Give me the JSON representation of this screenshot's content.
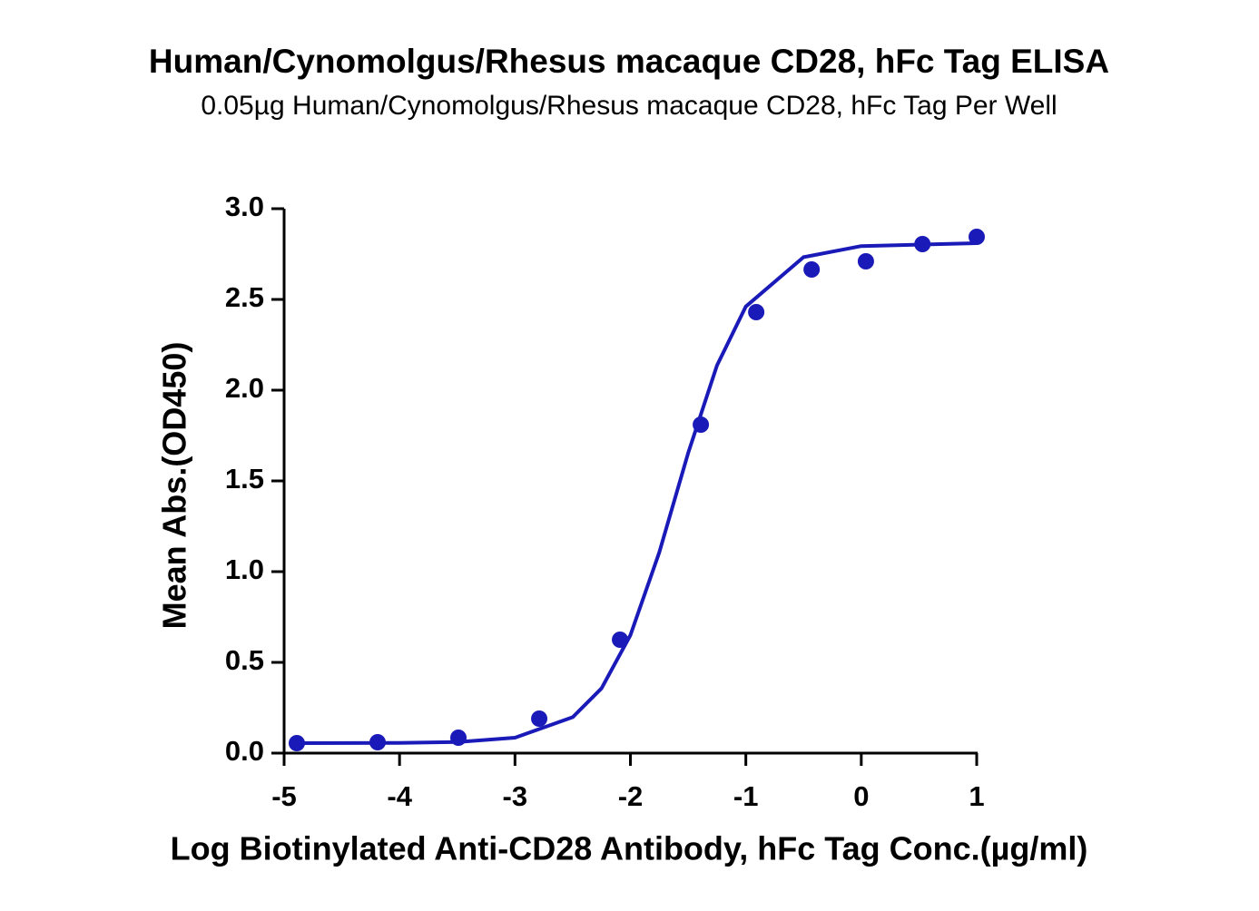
{
  "chart_data": {
    "type": "scatter",
    "title": "Human/Cynomolgus/Rhesus macaque CD28, hFc Tag ELISA",
    "subtitle": "0.05µg Human/Cynomolgus/Rhesus macaque CD28, hFc Tag Per Well",
    "x_label": "Log Biotinylated Anti-CD28 Antibody, hFc Tag Conc.(µg/ml)",
    "y_label": "Mean Abs.(OD450)",
    "xlim": [
      -5,
      1
    ],
    "ylim": [
      0,
      3
    ],
    "xticks": [
      -5,
      -4,
      -3,
      -2,
      -1,
      0,
      1
    ],
    "yticks": [
      {
        "value": 0,
        "label": "0.0"
      },
      0.5,
      {
        "value": 1,
        "label": "1.0"
      },
      1.5,
      {
        "value": 2,
        "label": "2.0"
      },
      2.5,
      {
        "value": 3,
        "label": "3.0"
      }
    ],
    "series": [
      {
        "mode": "markers",
        "color": "#1a1ab8",
        "x": [
          -4.89,
          -4.19,
          -3.49,
          -2.79,
          -2.09,
          -1.39,
          -0.91,
          -0.43,
          0.04,
          0.53,
          1.0
        ],
        "values": [
          0.055,
          0.06,
          0.085,
          0.19,
          0.625,
          1.81,
          2.43,
          2.665,
          2.71,
          2.805,
          2.845
        ]
      },
      {
        "mode": "line",
        "color": "#1a1ab8",
        "x": [
          -4.9,
          -4,
          -3.5,
          -3,
          -2.5,
          -2.25,
          -2,
          -1.75,
          -1.5,
          -1.25,
          -1,
          -0.5,
          0,
          1
        ],
        "values": [
          0.055,
          0.056,
          0.061,
          0.085,
          0.198,
          0.357,
          0.65,
          1.106,
          1.653,
          2.136,
          2.461,
          2.733,
          2.794,
          2.81
        ]
      }
    ]
  }
}
